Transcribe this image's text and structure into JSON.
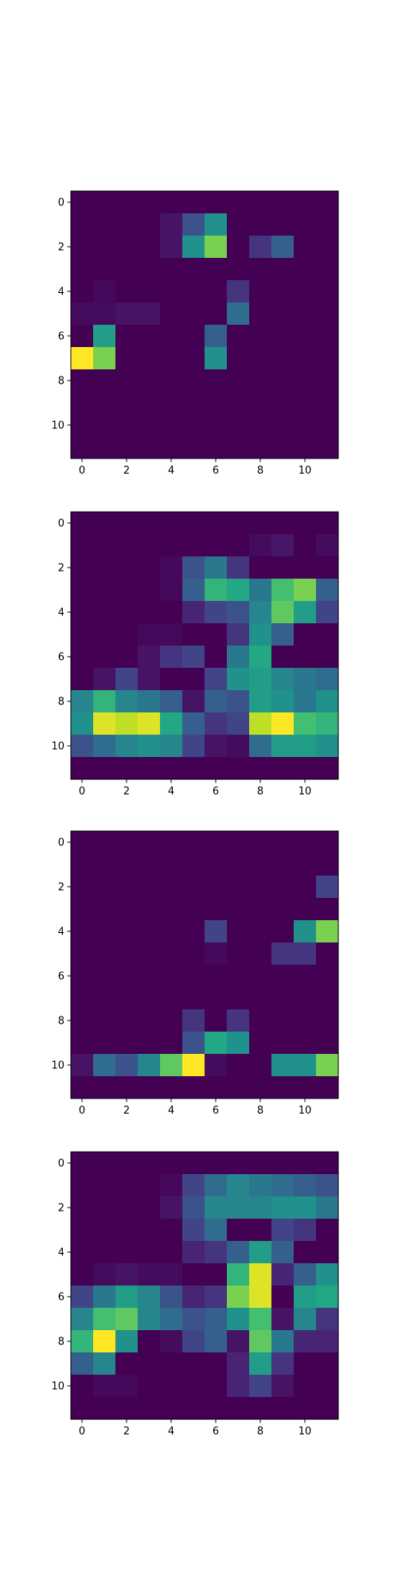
{
  "chart_data": [
    {
      "type": "heatmap",
      "colormap": "viridis",
      "value_range": [
        0,
        1
      ],
      "xlim": [
        -0.5,
        11.5
      ],
      "ylim": [
        11.5,
        -0.5
      ],
      "xticks": [
        "0",
        "2",
        "4",
        "6",
        "8",
        "10"
      ],
      "yticks": [
        "0",
        "2",
        "4",
        "6",
        "8",
        "10"
      ],
      "grid": false,
      "values": [
        [
          0,
          0,
          0,
          0,
          0,
          0,
          0,
          0,
          0,
          0,
          0,
          0
        ],
        [
          0,
          0,
          0,
          0,
          0.05,
          0.25,
          0.5,
          0,
          0,
          0,
          0,
          0
        ],
        [
          0,
          0,
          0,
          0,
          0.05,
          0.5,
          0.8,
          0,
          0.15,
          0.3,
          0,
          0
        ],
        [
          0,
          0,
          0,
          0,
          0,
          0,
          0,
          0,
          0,
          0,
          0,
          0
        ],
        [
          0,
          0.02,
          0,
          0,
          0,
          0,
          0,
          0.15,
          0,
          0,
          0,
          0
        ],
        [
          0.03,
          0.03,
          0.05,
          0.05,
          0,
          0,
          0,
          0.35,
          0,
          0,
          0,
          0
        ],
        [
          0,
          0.55,
          0,
          0,
          0,
          0,
          0.3,
          0,
          0,
          0,
          0,
          0
        ],
        [
          1.0,
          0.8,
          0,
          0,
          0,
          0,
          0.5,
          0,
          0,
          0,
          0,
          0
        ],
        [
          0,
          0,
          0,
          0,
          0,
          0,
          0,
          0,
          0,
          0,
          0,
          0
        ],
        [
          0,
          0,
          0,
          0,
          0,
          0,
          0,
          0,
          0,
          0,
          0,
          0
        ],
        [
          0,
          0,
          0,
          0,
          0,
          0,
          0,
          0,
          0,
          0,
          0,
          0
        ],
        [
          0,
          0,
          0,
          0,
          0,
          0,
          0,
          0,
          0,
          0,
          0,
          0
        ]
      ]
    },
    {
      "type": "heatmap",
      "colormap": "viridis",
      "value_range": [
        0,
        1
      ],
      "xlim": [
        -0.5,
        11.5
      ],
      "ylim": [
        11.5,
        -0.5
      ],
      "xticks": [
        "0",
        "2",
        "4",
        "6",
        "8",
        "10"
      ],
      "yticks": [
        "0",
        "2",
        "4",
        "6",
        "8",
        "10"
      ],
      "grid": false,
      "values": [
        [
          0,
          0,
          0,
          0,
          0,
          0,
          0,
          0,
          0,
          0,
          0,
          0
        ],
        [
          0,
          0,
          0,
          0,
          0,
          0,
          0,
          0,
          0.03,
          0.06,
          0,
          0.03
        ],
        [
          0,
          0,
          0,
          0,
          0.02,
          0.25,
          0.4,
          0.15,
          0,
          0,
          0,
          0
        ],
        [
          0,
          0,
          0,
          0,
          0.02,
          0.3,
          0.65,
          0.6,
          0.4,
          0.7,
          0.8,
          0.3
        ],
        [
          0,
          0,
          0,
          0,
          0,
          0.1,
          0.2,
          0.25,
          0.45,
          0.75,
          0.55,
          0.2
        ],
        [
          0,
          0,
          0,
          0.02,
          0.02,
          0,
          0,
          0.15,
          0.5,
          0.3,
          0,
          0
        ],
        [
          0,
          0,
          0,
          0.05,
          0.15,
          0.2,
          0,
          0.4,
          0.6,
          0,
          0,
          0
        ],
        [
          0,
          0.05,
          0.2,
          0.05,
          0,
          0,
          0.2,
          0.5,
          0.55,
          0.45,
          0.4,
          0.35
        ],
        [
          0.45,
          0.65,
          0.45,
          0.4,
          0.3,
          0.05,
          0.3,
          0.25,
          0.55,
          0.5,
          0.4,
          0.5
        ],
        [
          0.5,
          0.95,
          0.9,
          0.95,
          0.6,
          0.3,
          0.15,
          0.2,
          0.9,
          1.0,
          0.7,
          0.65
        ],
        [
          0.25,
          0.35,
          0.45,
          0.5,
          0.45,
          0.2,
          0.05,
          0.03,
          0.35,
          0.55,
          0.55,
          0.5
        ],
        [
          0,
          0,
          0,
          0,
          0,
          0,
          0,
          0,
          0,
          0,
          0,
          0
        ]
      ]
    },
    {
      "type": "heatmap",
      "colormap": "viridis",
      "value_range": [
        0,
        1
      ],
      "xlim": [
        -0.5,
        11.5
      ],
      "ylim": [
        11.5,
        -0.5
      ],
      "xticks": [
        "0",
        "2",
        "4",
        "6",
        "8",
        "10"
      ],
      "yticks": [
        "0",
        "2",
        "4",
        "6",
        "8",
        "10"
      ],
      "grid": false,
      "values": [
        [
          0,
          0,
          0,
          0,
          0,
          0,
          0,
          0,
          0,
          0,
          0,
          0
        ],
        [
          0,
          0,
          0,
          0,
          0,
          0,
          0,
          0,
          0,
          0,
          0,
          0
        ],
        [
          0,
          0,
          0,
          0,
          0,
          0,
          0,
          0,
          0,
          0,
          0,
          0.2
        ],
        [
          0,
          0,
          0,
          0,
          0,
          0,
          0,
          0,
          0,
          0,
          0,
          0
        ],
        [
          0,
          0,
          0,
          0,
          0,
          0,
          0.2,
          0,
          0,
          0,
          0.5,
          0.8
        ],
        [
          0,
          0,
          0,
          0,
          0,
          0,
          0.02,
          0,
          0,
          0.15,
          0.15,
          0
        ],
        [
          0,
          0,
          0,
          0,
          0,
          0,
          0,
          0,
          0,
          0,
          0,
          0
        ],
        [
          0,
          0,
          0,
          0,
          0,
          0,
          0,
          0,
          0,
          0,
          0,
          0
        ],
        [
          0,
          0,
          0,
          0,
          0,
          0.15,
          0,
          0.15,
          0,
          0,
          0,
          0
        ],
        [
          0,
          0,
          0,
          0,
          0,
          0.25,
          0.6,
          0.5,
          0,
          0,
          0,
          0
        ],
        [
          0.05,
          0.35,
          0.25,
          0.45,
          0.75,
          1.0,
          0.03,
          0,
          0,
          0.5,
          0.5,
          0.8
        ],
        [
          0,
          0,
          0,
          0,
          0,
          0,
          0,
          0,
          0,
          0,
          0,
          0
        ]
      ]
    },
    {
      "type": "heatmap",
      "colormap": "viridis",
      "value_range": [
        0,
        1
      ],
      "xlim": [
        -0.5,
        11.5
      ],
      "ylim": [
        11.5,
        -0.5
      ],
      "xticks": [
        "0",
        "2",
        "4",
        "6",
        "8",
        "10"
      ],
      "yticks": [
        "0",
        "2",
        "4",
        "6",
        "8",
        "10"
      ],
      "grid": false,
      "values": [
        [
          0,
          0,
          0,
          0,
          0,
          0,
          0,
          0,
          0,
          0,
          0,
          0
        ],
        [
          0,
          0,
          0,
          0,
          0.02,
          0.2,
          0.35,
          0.45,
          0.4,
          0.35,
          0.3,
          0.25
        ],
        [
          0,
          0,
          0,
          0,
          0.05,
          0.25,
          0.45,
          0.45,
          0.45,
          0.5,
          0.5,
          0.4
        ],
        [
          0,
          0,
          0,
          0,
          0,
          0.2,
          0.35,
          0,
          0,
          0.2,
          0.15,
          0
        ],
        [
          0,
          0,
          0,
          0,
          0,
          0.1,
          0.15,
          0.3,
          0.55,
          0.3,
          0,
          0
        ],
        [
          0,
          0.03,
          0.05,
          0.03,
          0.03,
          0,
          0,
          0.65,
          0.95,
          0.1,
          0.3,
          0.5
        ],
        [
          0.2,
          0.4,
          0.55,
          0.45,
          0.25,
          0.1,
          0.15,
          0.8,
          0.95,
          0,
          0.55,
          0.6
        ],
        [
          0.45,
          0.7,
          0.75,
          0.45,
          0.35,
          0.25,
          0.3,
          0.5,
          0.7,
          0.05,
          0.45,
          0.15
        ],
        [
          0.65,
          1.0,
          0.5,
          0,
          0.03,
          0.2,
          0.3,
          0.05,
          0.75,
          0.4,
          0.1,
          0.1
        ],
        [
          0.3,
          0.45,
          0,
          0,
          0,
          0,
          0,
          0.1,
          0.55,
          0.15,
          0,
          0
        ],
        [
          0,
          0.02,
          0.02,
          0,
          0,
          0,
          0,
          0.1,
          0.2,
          0.05,
          0,
          0
        ],
        [
          0,
          0,
          0,
          0,
          0,
          0,
          0,
          0,
          0,
          0,
          0,
          0
        ]
      ]
    }
  ]
}
